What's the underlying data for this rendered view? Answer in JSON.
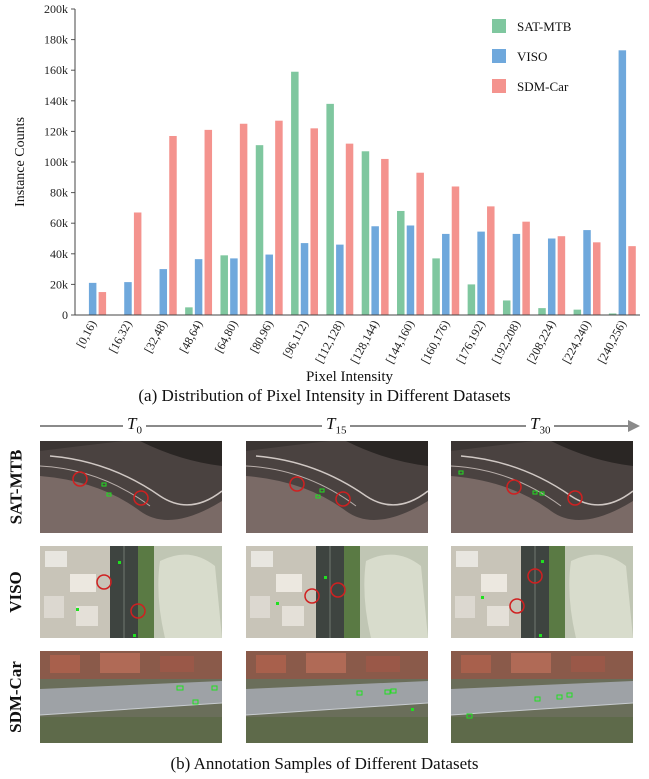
{
  "chart_data": {
    "type": "bar",
    "ylabel": "Instance Counts",
    "xlabel": "Pixel Intensity",
    "ylim": [
      0,
      200000
    ],
    "yticks": [
      0,
      20000,
      40000,
      60000,
      80000,
      100000,
      120000,
      140000,
      160000,
      180000,
      200000
    ],
    "ytick_labels": [
      "0",
      "20k",
      "40k",
      "60k",
      "80k",
      "100k",
      "120k",
      "140k",
      "160k",
      "180k",
      "200k"
    ],
    "categories": [
      "[0,16)",
      "[16,32)",
      "[32,48)",
      "[48,64)",
      "[64,80)",
      "[80,96)",
      "[96,112)",
      "[112,128)",
      "[128,144)",
      "[144,160)",
      "[160,176)",
      "[176,192)",
      "[192,208)",
      "[208,224)",
      "[224,240)",
      "[240,256)"
    ],
    "legend_position": "top-right",
    "grid": false,
    "series": [
      {
        "name": "SAT-MTB",
        "color": "#7fc79f",
        "values": [
          0,
          0,
          0,
          5000,
          39000,
          111000,
          159000,
          138000,
          107000,
          68000,
          37000,
          20000,
          9500,
          4500,
          3500,
          1000
        ]
      },
      {
        "name": "VISO",
        "color": "#6fa8dc",
        "values": [
          21000,
          21500,
          30000,
          36500,
          37000,
          39500,
          47000,
          46000,
          58000,
          58500,
          53000,
          54500,
          53000,
          50000,
          55500,
          173000
        ]
      },
      {
        "name": "SDM-Car",
        "color": "#f4938e",
        "values": [
          15000,
          67000,
          117000,
          121000,
          125000,
          127000,
          122000,
          112000,
          102000,
          93000,
          84000,
          71000,
          61000,
          51500,
          47500,
          45000
        ]
      }
    ]
  },
  "figure": {
    "caption_a": "(a) Distribution of  Pixel Intensity in Different Datasets",
    "caption_b": "(b) Annotation Samples of Different Datasets",
    "time_labels": [
      {
        "base": "T",
        "sub": "0"
      },
      {
        "base": "T",
        "sub": "15"
      },
      {
        "base": "T",
        "sub": "30"
      }
    ],
    "row_labels": [
      "SAT-MTB",
      "VISO",
      "SDM-Car"
    ]
  }
}
